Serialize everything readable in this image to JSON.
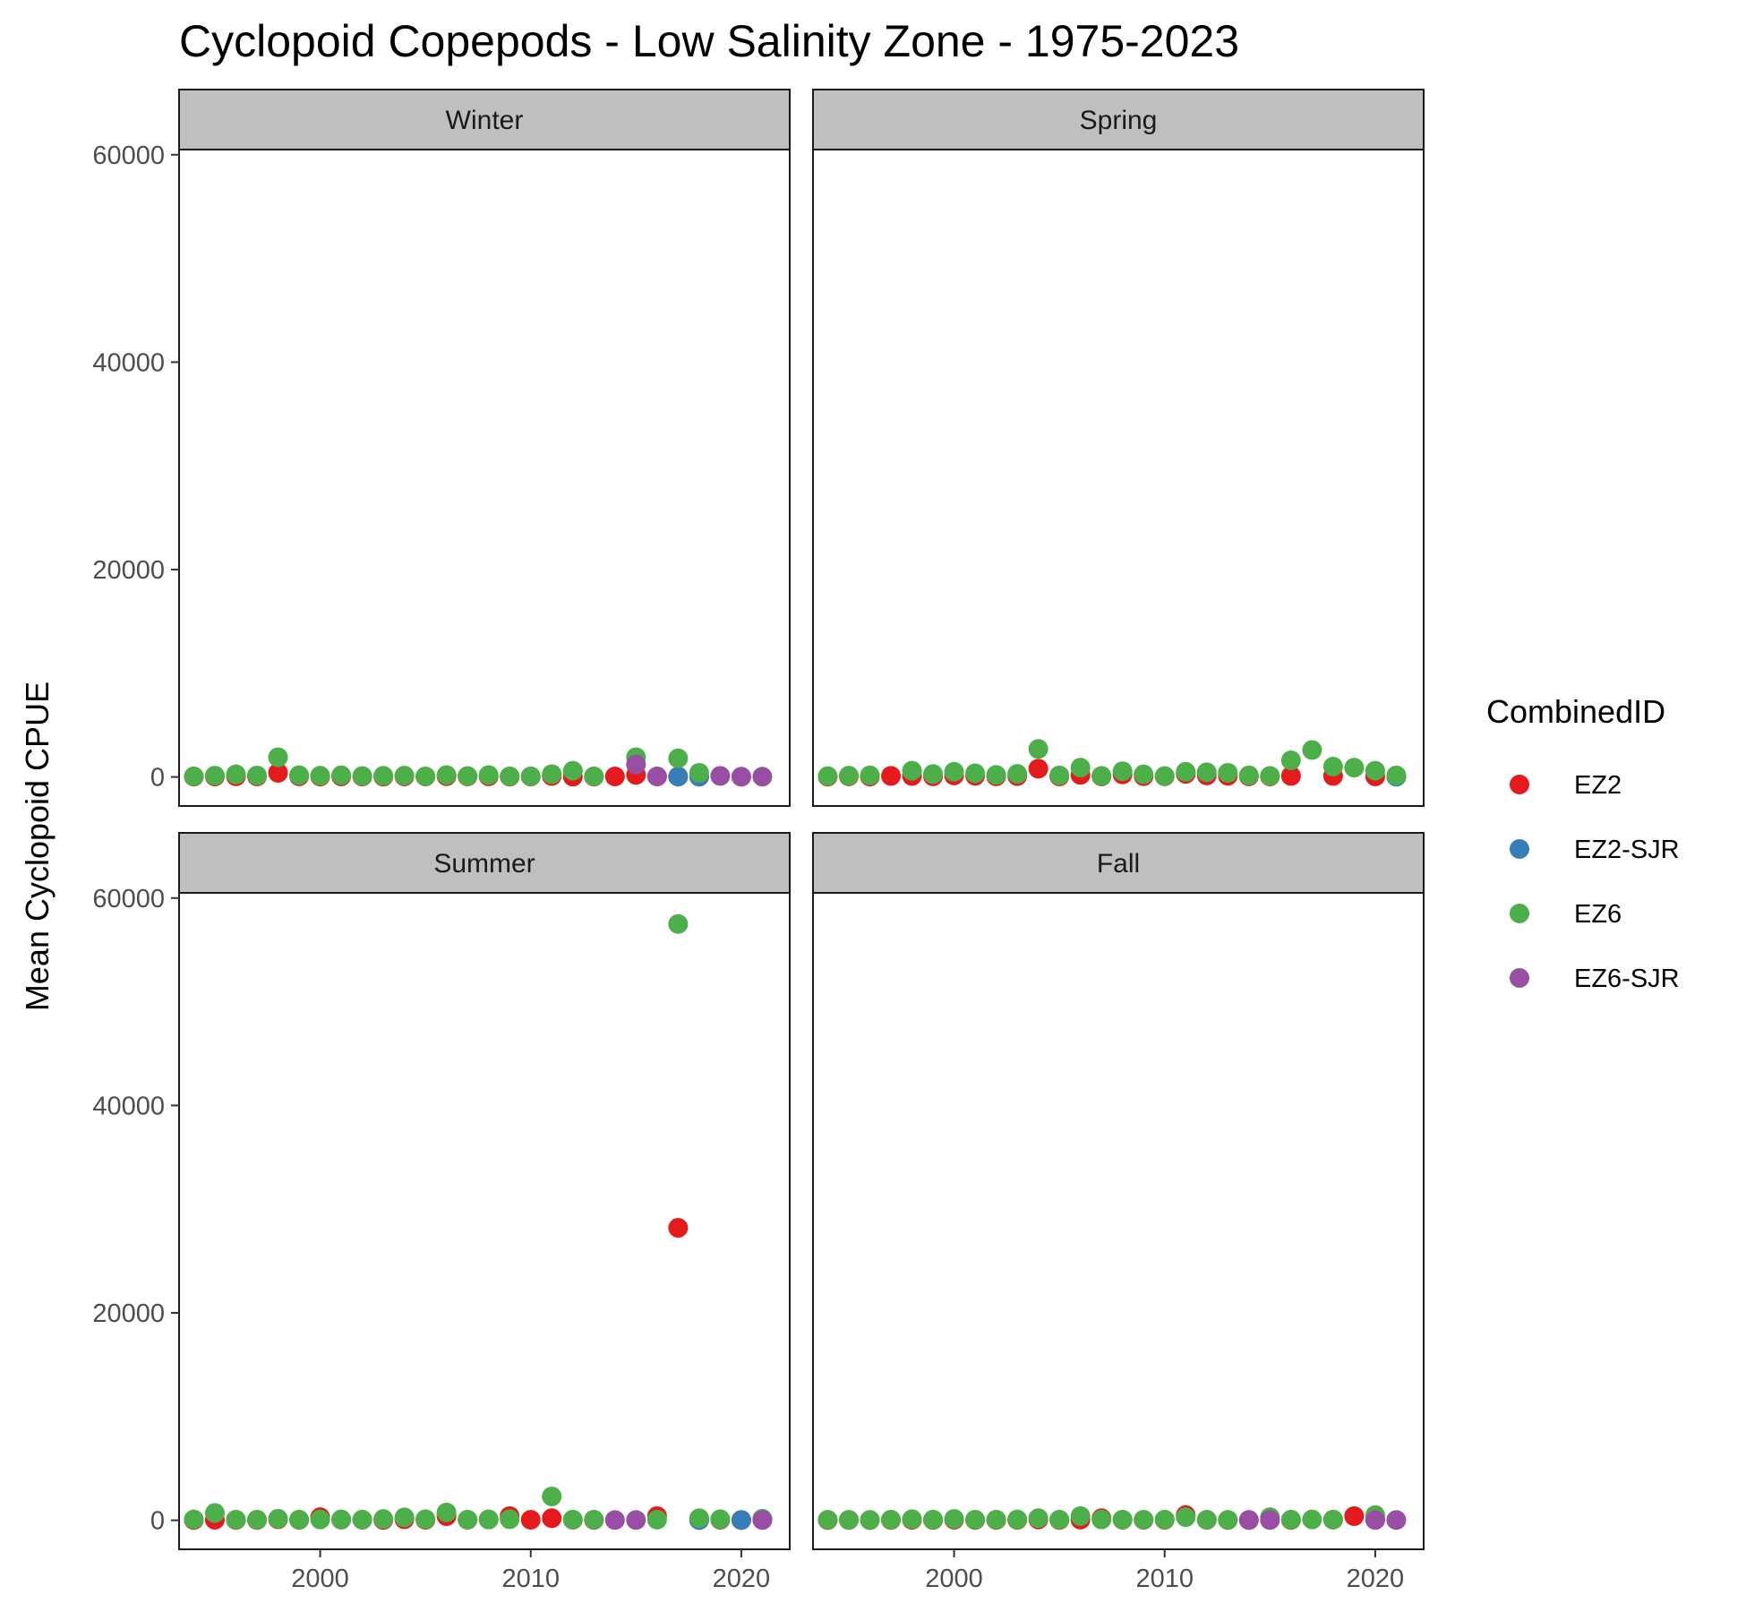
{
  "chart_data": {
    "type": "scatter",
    "title": "Cyclopoid Copepods - Low Salinity Zone - 1975-2023",
    "xlabel": "",
    "ylabel": "Mean Cyclopoid CPUE",
    "xlim": [
      1993.3,
      2022.3
    ],
    "ylim": [
      -2800,
      60500
    ],
    "x_ticks": [
      2000,
      2010,
      2020
    ],
    "y_ticks": [
      0,
      20000,
      40000,
      60000
    ],
    "legend": {
      "title": "CombinedID",
      "placement": "right",
      "entries": [
        {
          "name": "EZ2",
          "color": "#E41A1C"
        },
        {
          "name": "EZ2-SJR",
          "color": "#377EB8"
        },
        {
          "name": "EZ6",
          "color": "#4DAF4A"
        },
        {
          "name": "EZ6-SJR",
          "color": "#984EA3"
        }
      ]
    },
    "panels": [
      {
        "name": "Winter",
        "series": [
          {
            "name": "EZ2",
            "points": [
              [
                1994,
                30
              ],
              [
                1995,
                40
              ],
              [
                1996,
                60
              ],
              [
                1997,
                50
              ],
              [
                1998,
                400
              ],
              [
                1999,
                60
              ],
              [
                2000,
                40
              ],
              [
                2001,
                50
              ],
              [
                2002,
                40
              ],
              [
                2003,
                30
              ],
              [
                2004,
                50
              ],
              [
                2005,
                40
              ],
              [
                2006,
                70
              ],
              [
                2007,
                50
              ],
              [
                2008,
                60
              ],
              [
                2009,
                30
              ],
              [
                2010,
                40
              ],
              [
                2011,
                100
              ],
              [
                2012,
                30
              ],
              [
                2013,
                30
              ],
              [
                2014,
                50
              ],
              [
                2015,
                200
              ],
              [
                2016,
                50
              ],
              [
                2017,
                50
              ],
              [
                2018,
                30
              ]
            ]
          },
          {
            "name": "EZ2-SJR",
            "points": [
              [
                2017,
                30
              ],
              [
                2018,
                30
              ],
              [
                2020,
                20
              ]
            ]
          },
          {
            "name": "EZ6",
            "points": [
              [
                1994,
                60
              ],
              [
                1995,
                130
              ],
              [
                1996,
                250
              ],
              [
                1997,
                140
              ],
              [
                1998,
                1900
              ],
              [
                1999,
                170
              ],
              [
                2000,
                120
              ],
              [
                2001,
                160
              ],
              [
                2002,
                90
              ],
              [
                2003,
                110
              ],
              [
                2004,
                130
              ],
              [
                2005,
                50
              ],
              [
                2006,
                180
              ],
              [
                2007,
                90
              ],
              [
                2008,
                180
              ],
              [
                2009,
                60
              ],
              [
                2010,
                60
              ],
              [
                2011,
                270
              ],
              [
                2012,
                600
              ],
              [
                2013,
                60
              ],
              [
                2015,
                1900
              ],
              [
                2017,
                1800
              ],
              [
                2018,
                400
              ]
            ]
          },
          {
            "name": "EZ6-SJR",
            "points": [
              [
                2015,
                1200
              ],
              [
                2016,
                50
              ],
              [
                2019,
                100
              ],
              [
                2020,
                30
              ],
              [
                2021,
                30
              ]
            ]
          }
        ]
      },
      {
        "name": "Spring",
        "series": [
          {
            "name": "EZ2",
            "points": [
              [
                1994,
                30
              ],
              [
                1995,
                60
              ],
              [
                1996,
                40
              ],
              [
                1997,
                100
              ],
              [
                1998,
                100
              ],
              [
                1999,
                60
              ],
              [
                2000,
                150
              ],
              [
                2001,
                120
              ],
              [
                2002,
                60
              ],
              [
                2003,
                90
              ],
              [
                2004,
                800
              ],
              [
                2005,
                50
              ],
              [
                2006,
                200
              ],
              [
                2007,
                50
              ],
              [
                2008,
                250
              ],
              [
                2009,
                80
              ],
              [
                2010,
                60
              ],
              [
                2011,
                300
              ],
              [
                2012,
                150
              ],
              [
                2013,
                120
              ],
              [
                2014,
                60
              ],
              [
                2015,
                50
              ],
              [
                2016,
                100
              ],
              [
                2018,
                100
              ],
              [
                2020,
                50
              ],
              [
                2021,
                40
              ]
            ]
          },
          {
            "name": "EZ2-SJR",
            "points": [
              [
                2021,
                30
              ]
            ]
          },
          {
            "name": "EZ6",
            "points": [
              [
                1994,
                80
              ],
              [
                1995,
                120
              ],
              [
                1996,
                150
              ],
              [
                1998,
                600
              ],
              [
                1999,
                280
              ],
              [
                2000,
                500
              ],
              [
                2001,
                350
              ],
              [
                2002,
                200
              ],
              [
                2003,
                300
              ],
              [
                2004,
                2700
              ],
              [
                2005,
                150
              ],
              [
                2006,
                900
              ],
              [
                2007,
                100
              ],
              [
                2008,
                550
              ],
              [
                2009,
                250
              ],
              [
                2010,
                90
              ],
              [
                2011,
                500
              ],
              [
                2012,
                450
              ],
              [
                2013,
                400
              ],
              [
                2014,
                150
              ],
              [
                2015,
                100
              ],
              [
                2016,
                1600
              ],
              [
                2017,
                2600
              ],
              [
                2018,
                1000
              ],
              [
                2019,
                900
              ],
              [
                2020,
                600
              ],
              [
                2021,
                150
              ]
            ]
          }
        ]
      },
      {
        "name": "Summer",
        "series": [
          {
            "name": "EZ2",
            "points": [
              [
                1994,
                20
              ],
              [
                1995,
                50
              ],
              [
                1996,
                30
              ],
              [
                1997,
                30
              ],
              [
                1998,
                100
              ],
              [
                1999,
                40
              ],
              [
                2000,
                300
              ],
              [
                2001,
                60
              ],
              [
                2002,
                50
              ],
              [
                2003,
                30
              ],
              [
                2004,
                100
              ],
              [
                2005,
                40
              ],
              [
                2006,
                400
              ],
              [
                2007,
                50
              ],
              [
                2008,
                80
              ],
              [
                2009,
                400
              ],
              [
                2010,
                50
              ],
              [
                2011,
                200
              ],
              [
                2012,
                50
              ],
              [
                2013,
                30
              ],
              [
                2016,
                400
              ],
              [
                2017,
                28200
              ],
              [
                2018,
                30
              ],
              [
                2019,
                50
              ],
              [
                2020,
                30
              ],
              [
                2021,
                40
              ]
            ]
          },
          {
            "name": "EZ2-SJR",
            "points": [
              [
                2018,
                30
              ],
              [
                2020,
                20
              ]
            ]
          },
          {
            "name": "EZ6",
            "points": [
              [
                1994,
                80
              ],
              [
                1995,
                700
              ],
              [
                1996,
                60
              ],
              [
                1997,
                60
              ],
              [
                1998,
                150
              ],
              [
                1999,
                60
              ],
              [
                2000,
                80
              ],
              [
                2001,
                80
              ],
              [
                2002,
                60
              ],
              [
                2003,
                120
              ],
              [
                2004,
                280
              ],
              [
                2005,
                100
              ],
              [
                2006,
                750
              ],
              [
                2007,
                60
              ],
              [
                2008,
                80
              ],
              [
                2009,
                100
              ],
              [
                2011,
                2300
              ],
              [
                2012,
                60
              ],
              [
                2013,
                60
              ],
              [
                2016,
                60
              ],
              [
                2017,
                57500
              ],
              [
                2018,
                200
              ],
              [
                2019,
                100
              ],
              [
                2021,
                150
              ]
            ]
          },
          {
            "name": "EZ6-SJR",
            "points": [
              [
                2014,
                30
              ],
              [
                2015,
                30
              ],
              [
                2021,
                30
              ]
            ]
          }
        ]
      },
      {
        "name": "Fall",
        "series": [
          {
            "name": "EZ2",
            "points": [
              [
                1994,
                20
              ],
              [
                1995,
                30
              ],
              [
                1996,
                20
              ],
              [
                1997,
                30
              ],
              [
                1998,
                40
              ],
              [
                1999,
                30
              ],
              [
                2000,
                50
              ],
              [
                2001,
                30
              ],
              [
                2002,
                30
              ],
              [
                2003,
                40
              ],
              [
                2004,
                80
              ],
              [
                2005,
                30
              ],
              [
                2006,
                60
              ],
              [
                2007,
                200
              ],
              [
                2008,
                50
              ],
              [
                2009,
                40
              ],
              [
                2010,
                40
              ],
              [
                2011,
                500
              ],
              [
                2012,
                40
              ],
              [
                2013,
                30
              ],
              [
                2014,
                30
              ],
              [
                2015,
                40
              ],
              [
                2016,
                30
              ],
              [
                2018,
                60
              ],
              [
                2019,
                400
              ],
              [
                2020,
                50
              ]
            ]
          },
          {
            "name": "EZ6",
            "points": [
              [
                1994,
                50
              ],
              [
                1995,
                40
              ],
              [
                1996,
                40
              ],
              [
                1997,
                60
              ],
              [
                1998,
                100
              ],
              [
                1999,
                60
              ],
              [
                2000,
                130
              ],
              [
                2001,
                60
              ],
              [
                2002,
                60
              ],
              [
                2003,
                80
              ],
              [
                2004,
                200
              ],
              [
                2005,
                60
              ],
              [
                2006,
                400
              ],
              [
                2007,
                80
              ],
              [
                2008,
                60
              ],
              [
                2009,
                50
              ],
              [
                2010,
                60
              ],
              [
                2011,
                300
              ],
              [
                2012,
                50
              ],
              [
                2013,
                40
              ],
              [
                2015,
                300
              ],
              [
                2016,
                60
              ],
              [
                2017,
                80
              ],
              [
                2018,
                60
              ],
              [
                2020,
                500
              ]
            ]
          },
          {
            "name": "EZ6-SJR",
            "points": [
              [
                2014,
                30
              ],
              [
                2015,
                30
              ],
              [
                2020,
                30
              ],
              [
                2021,
                30
              ]
            ]
          }
        ]
      }
    ]
  }
}
